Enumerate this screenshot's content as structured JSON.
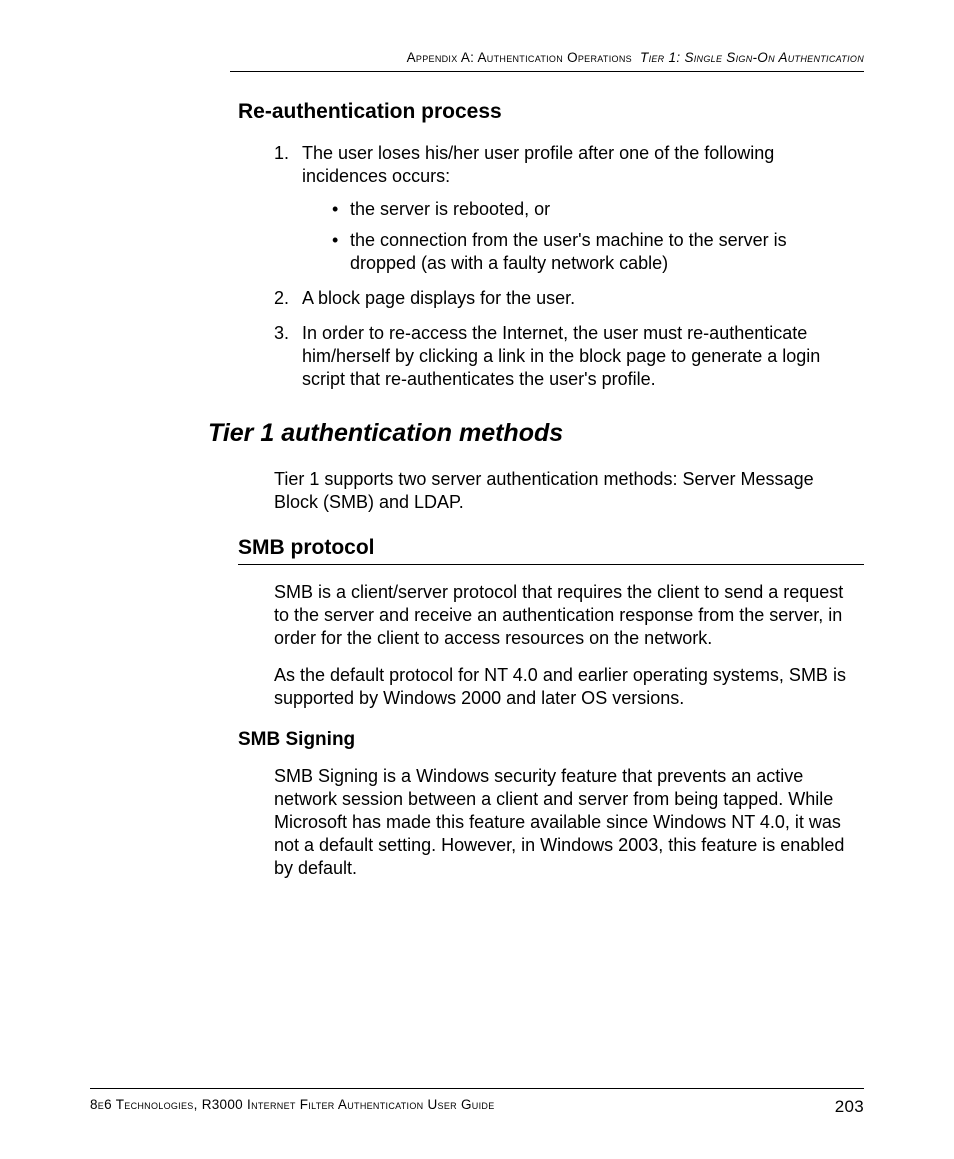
{
  "header": {
    "appendix": "Appendix A: Authentication Operations",
    "section": "Tier 1: Single Sign-On Authentication"
  },
  "reauth": {
    "heading": "Re-authentication process",
    "items": [
      {
        "num": "1.",
        "text": "The user loses his/her user profile after one of the following incidences occurs:",
        "bullets": [
          "the server is rebooted, or",
          "the connection from the user's machine to the server is dropped (as with a faulty network cable)"
        ]
      },
      {
        "num": "2.",
        "text": "A block page displays for the user."
      },
      {
        "num": "3.",
        "text": "In order to re-access the Internet, the user must re-authenticate him/herself by clicking a link in the block page to generate a login script that re-authenticates the user's profile."
      }
    ]
  },
  "tier1": {
    "heading": "Tier 1 authentication methods",
    "intro": "Tier 1 supports two server authentication methods: Server Message Block (SMB) and LDAP."
  },
  "smb": {
    "heading": "SMB protocol",
    "p1": "SMB is a client/server protocol that requires the client to send a request to the server and receive an authentication response from the server, in order for the client to access resources on the network.",
    "p2": "As the default protocol for NT 4.0 and earlier operating systems, SMB is supported by Windows 2000 and later OS versions."
  },
  "smbsigning": {
    "heading": "SMB Signing",
    "p1": "SMB Signing is a Windows security feature that prevents an active network session between a client and server from being tapped. While Microsoft has made this feature available since Windows NT 4.0, it was not a default setting. However, in Windows 2003, this feature is enabled by default."
  },
  "footer": {
    "left": "8e6 Technologies, R3000 Internet Filter Authentication User Guide",
    "page": "203"
  }
}
